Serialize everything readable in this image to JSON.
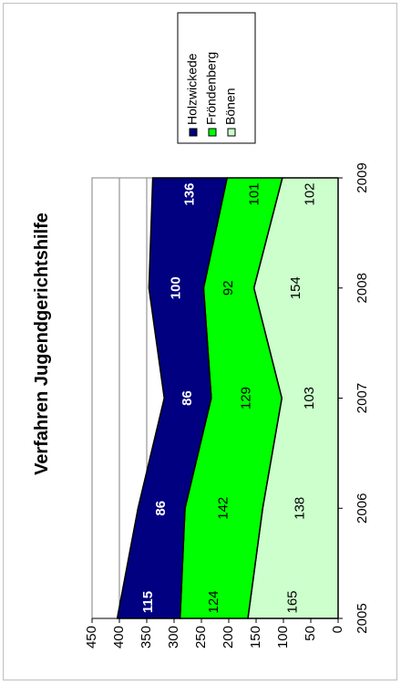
{
  "chart_data": {
    "type": "area",
    "stacked": true,
    "orientation": "rotated-90-counterclockwise",
    "title": "Verfahren Jugendgerichtshilfe",
    "categories": [
      "2005",
      "2006",
      "2007",
      "2008",
      "2009"
    ],
    "series": [
      {
        "name": "Bönen",
        "color": "#ccffcc",
        "values": [
          165,
          138,
          103,
          154,
          102
        ]
      },
      {
        "name": "Fröndenberg",
        "color": "#00ff00",
        "values": [
          124,
          142,
          129,
          92,
          101
        ]
      },
      {
        "name": "Holzwickede",
        "color": "#000080",
        "values": [
          115,
          86,
          86,
          100,
          136
        ]
      }
    ],
    "ylim": [
      0,
      450
    ],
    "yticks": [
      "0",
      "50",
      "100",
      "150",
      "200",
      "250",
      "300",
      "350",
      "400",
      "450"
    ],
    "grid": true,
    "legend_position": "right",
    "legend_order": [
      "Holzwickede",
      "Fröndenberg",
      "Bönen"
    ]
  }
}
